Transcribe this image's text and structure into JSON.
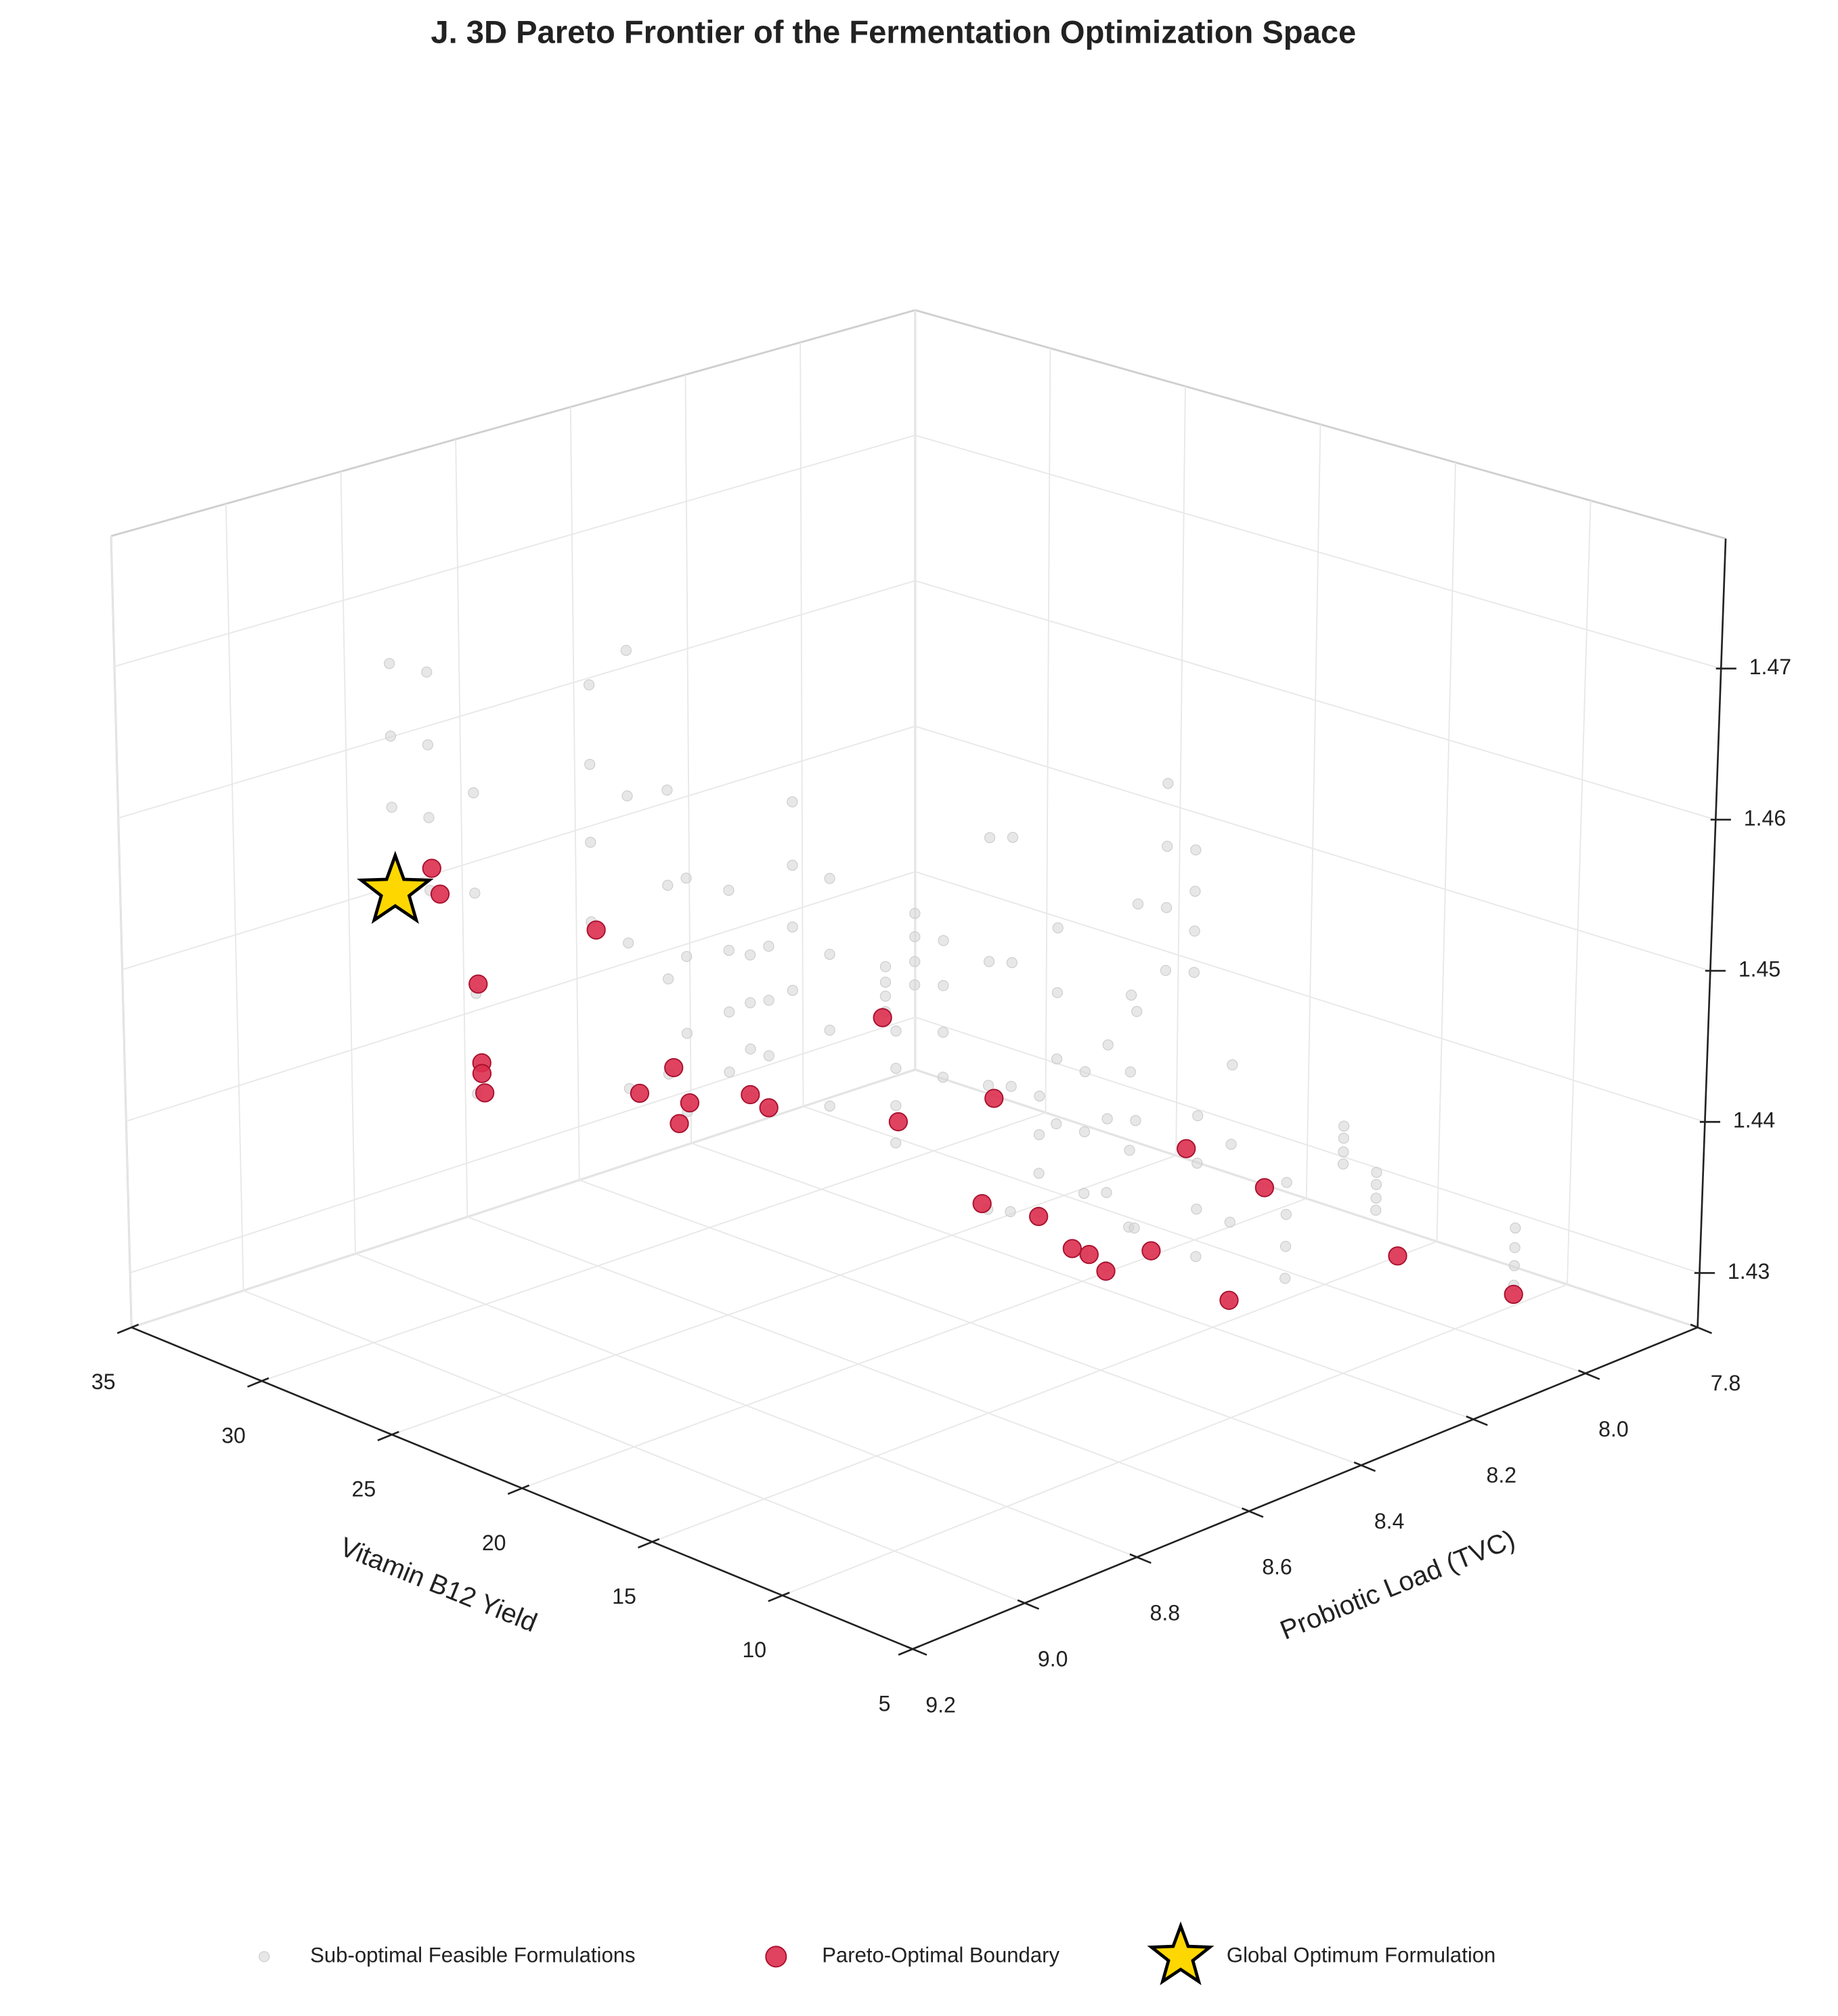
{
  "chart_data": {
    "type": "scatter3d",
    "title": "J. 3D Pareto Frontier of the Fermentation Optimization Space",
    "xlabel": "Vitamin B12 Yield",
    "ylabel": "Probiotic Load (TVC)",
    "xlim": [
      5,
      35
    ],
    "ylim": [
      7.8,
      9.2
    ],
    "zlim": [
      1.4264,
      1.4786
    ],
    "xticks": [
      5,
      10,
      15,
      20,
      25,
      30,
      35
    ],
    "yticks": [
      7.8,
      {
        "value": 8.0,
        "label": "8.0"
      },
      8.2,
      8.4,
      8.6,
      8.8,
      {
        "value": 9.0,
        "label": "9.0"
      },
      9.2
    ],
    "zticks": [
      1.43,
      1.44,
      1.45,
      1.46,
      1.47
    ],
    "grid": true,
    "legend": "lower center",
    "series": [
      {
        "name": "Sub-optimal Feasible Formulations",
        "color": "#d3d3d3",
        "marker": "circle",
        "x": [
          30.7,
          30.7,
          30.7,
          30.7,
          29.3,
          29.3,
          29.3,
          29.3,
          27.6,
          27.6,
          27.6,
          27.6,
          23.2,
          23.2,
          23.2,
          23.2,
          21.8,
          21.8,
          21.8,
          21.8,
          20.3,
          20.3,
          20.3,
          20.3,
          19.6,
          19.6,
          19.6,
          19.6,
          18.0,
          18.0,
          18.0,
          18.0,
          17.2,
          17.2,
          17.2,
          17.2,
          16.5,
          16.5,
          16.5,
          16.5,
          15.6,
          15.6,
          15.6,
          15.6,
          14.2,
          14.2,
          14.2,
          14.2,
          12.1,
          12.1,
          12.1,
          12.1,
          11.7,
          11.7,
          11.7,
          11.7,
          11.0,
          11.0,
          11.0,
          11.0,
          11.0,
          11.0,
          11.0,
          11.0,
          11.0,
          11.0,
          11.0,
          11.0,
          11.0,
          11.0,
          11.0,
          11.0,
          11.0,
          11.0,
          11.0,
          11.0,
          11.0,
          11.0,
          11.0,
          11.0,
          11.0,
          11.0,
          11.0,
          11.0,
          11.0,
          11.0,
          11.0,
          11.0,
          11.0,
          11.0,
          11.0,
          11.0,
          11.0,
          11.0,
          11.0,
          11.0,
          11.0,
          11.0,
          11.0,
          11.0,
          11.0,
          11.0,
          11.0,
          11.0,
          11.0,
          11.0,
          11.0,
          11.0,
          11.0,
          11.0,
          11.0,
          11.0,
          11.0,
          11.0,
          11.0,
          11.0,
          11.0,
          11.0,
          11.0,
          11.0,
          9.5,
          9.5,
          9.5,
          9.5,
          11.0,
          11.0,
          11.0,
          11.0
        ],
        "y": [
          8.92,
          8.92,
          8.92,
          8.92,
          8.92,
          8.92,
          8.92,
          8.92,
          8.92,
          8.92,
          8.92,
          8.92,
          8.92,
          8.92,
          8.92,
          8.92,
          8.92,
          8.92,
          8.92,
          8.92,
          8.92,
          8.92,
          8.92,
          8.92,
          8.92,
          8.92,
          8.92,
          8.92,
          8.92,
          8.92,
          8.92,
          8.92,
          8.92,
          8.92,
          8.92,
          8.92,
          8.92,
          8.92,
          8.92,
          8.92,
          8.92,
          8.92,
          8.92,
          8.92,
          8.92,
          8.92,
          8.92,
          8.92,
          8.92,
          8.92,
          8.92,
          8.92,
          8.92,
          8.92,
          8.92,
          8.92,
          8.92,
          8.92,
          8.92,
          8.92,
          8.87,
          8.87,
          8.87,
          8.87,
          8.79,
          8.79,
          8.79,
          8.79,
          8.75,
          8.75,
          8.75,
          8.75,
          8.7,
          8.7,
          8.7,
          8.7,
          8.67,
          8.67,
          8.67,
          8.67,
          8.62,
          8.62,
          8.62,
          8.62,
          8.58,
          8.58,
          8.58,
          8.58,
          8.54,
          8.54,
          8.54,
          8.54,
          8.53,
          8.53,
          8.53,
          8.53,
          8.48,
          8.48,
          8.48,
          8.48,
          8.43,
          8.43,
          8.43,
          8.43,
          8.36,
          8.36,
          8.36,
          8.36,
          8.26,
          8.26,
          8.26,
          8.26,
          8.16,
          8.16,
          8.16,
          8.16,
          8.1,
          8.1,
          8.1,
          8.1,
          7.92,
          7.92,
          7.92,
          7.92,
          8.42,
          8.42,
          8.42,
          8.42
        ],
        "z": [
          1.4555,
          1.4603,
          1.465,
          1.4698,
          1.4557,
          1.4605,
          1.4653,
          1.4701,
          1.4434,
          1.45,
          1.4566,
          1.4632,
          1.4575,
          1.4627,
          1.4678,
          1.473,
          1.4475,
          1.457,
          1.4666,
          1.4761,
          1.4494,
          1.4556,
          1.4617,
          1.4679,
          1.4474,
          1.4525,
          1.4575,
          1.4626,
          1.451,
          1.4549,
          1.4589,
          1.4628,
          1.4499,
          1.453,
          1.456,
          1.4591,
          1.4495,
          1.453,
          1.4566,
          1.4601,
          1.4578,
          1.4619,
          1.4659,
          1.47,
          1.4512,
          1.4561,
          1.461,
          1.4659,
          1.4586,
          1.4596,
          1.4605,
          1.4615,
          1.4504,
          1.4528,
          1.4552,
          1.4576,
          1.461,
          1.4625,
          1.4641,
          1.4656,
          1.4544,
          1.4573,
          1.4603,
          1.4632,
          1.4448,
          1.4528,
          1.4608,
          1.4688,
          1.4441,
          1.4522,
          1.4602,
          1.4683,
          1.4434,
          1.4459,
          1.4484,
          1.4509,
          1.4487,
          1.4529,
          1.4572,
          1.4614,
          1.4396,
          1.4435,
          1.4475,
          1.4514,
          1.4382,
          1.443,
          1.4478,
          1.4526,
          1.4402,
          1.4452,
          1.4503,
          1.4553,
          1.44,
          1.447,
          1.4541,
          1.4611,
          1.4561,
          1.4602,
          1.4642,
          1.4683,
          1.4553,
          1.458,
          1.4606,
          1.4633,
          1.4328,
          1.438,
          1.4431,
          1.4483,
          1.4329,
          1.435,
          1.4371,
          1.4392,
          1.439,
          1.4398,
          1.4407,
          1.4415,
          1.4351,
          1.4359,
          1.4368,
          1.4376,
          1.4284,
          1.4297,
          1.4309,
          1.4322,
          1.4366,
          1.4397,
          1.4427,
          1.4458
        ]
      },
      {
        "name": "Pareto-Optimal Boundary",
        "color": "#dc2f4e",
        "marker": "circle",
        "x": [
          27.7,
          27.4,
          26.0,
          25.9,
          25.9,
          25.8,
          21.5,
          19.9,
          18.6,
          18.4,
          18.0,
          15.7,
          15.0,
          10.7,
          10.1,
          9.5,
          9.5,
          9.5,
          9.5,
          9.5,
          9.5,
          9.5,
          9.5,
          9.5,
          9.5,
          9.5,
          9.5
        ],
        "y": [
          8.99,
          8.99,
          8.99,
          8.99,
          8.99,
          8.99,
          8.99,
          8.99,
          8.99,
          8.99,
          8.99,
          8.99,
          8.99,
          8.99,
          8.99,
          8.87,
          8.85,
          8.77,
          8.71,
          8.68,
          8.65,
          8.57,
          8.51,
          8.43,
          8.37,
          8.13,
          7.92
        ],
        "z": [
          1.459,
          1.4575,
          1.4525,
          1.4474,
          1.4467,
          1.4455,
          1.4589,
          1.4493,
          1.4518,
          1.4483,
          1.4499,
          1.4519,
          1.4515,
          1.46,
          1.4537,
          1.4472,
          1.4537,
          1.445,
          1.4421,
          1.4413,
          1.4398,
          1.44,
          1.4458,
          1.4348,
          1.4413,
          1.4334,
          1.4278
        ]
      },
      {
        "name": "Global Optimum Formulation",
        "color": "#ffd700",
        "marker": "star",
        "x": [
          29.1
        ],
        "y": [
          8.99
        ],
        "z": [
          1.4566
        ]
      }
    ]
  }
}
